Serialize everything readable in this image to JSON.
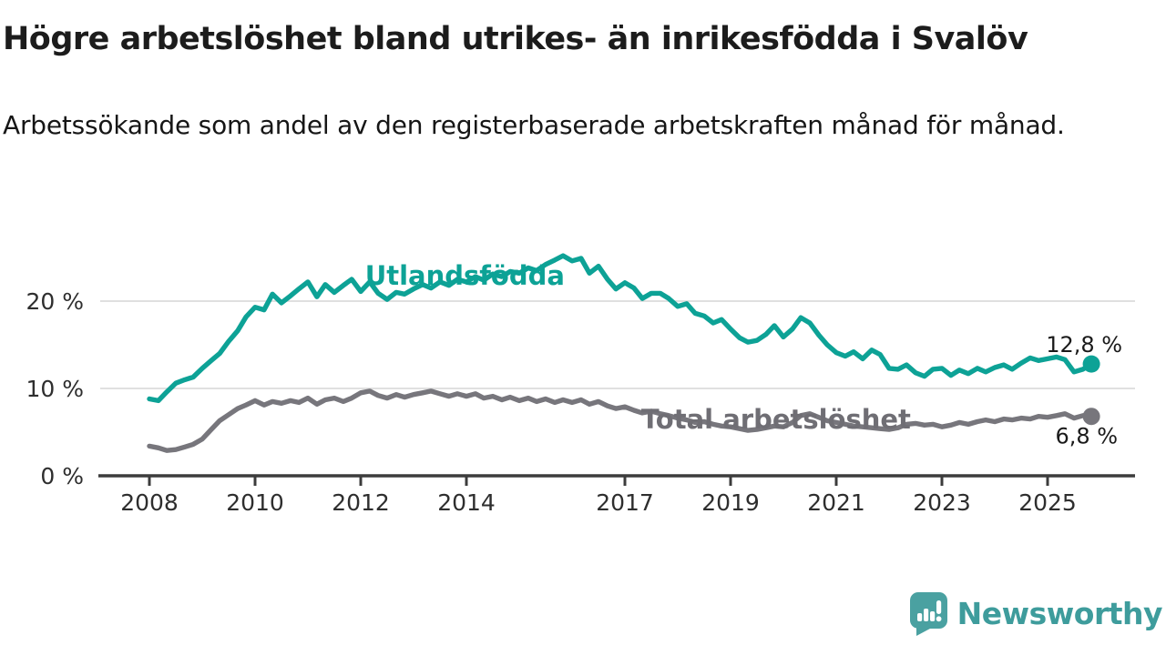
{
  "header": {
    "title": "Högre arbetslöshet bland utrikes- än inrikesfödda i Svalöv",
    "subtitle": "Arbetssökande som andel av den registerbaserade arbetskraften månad för månad."
  },
  "footer": {
    "brand": "Newsworthy"
  },
  "colors": {
    "foreign_born": "#0da296",
    "total": "#77767c",
    "total_label": "#6f6e74",
    "value_label": "#1a1a1a",
    "axis": "#3c3c3c",
    "grid": "#dcdcdc",
    "brand": "#3e9c9c"
  },
  "chart_data": {
    "type": "line",
    "title": "Högre arbetslöshet bland utrikes- än inrikesfödda i Svalöv",
    "subtitle": "Arbetssökande som andel av den registerbaserade arbetskraften månad för månad.",
    "xlabel": "",
    "ylabel": "",
    "x_unit": "year (decimal fraction = month)",
    "y_unit": "percent of registered labour force",
    "xlim": [
      2007.05,
      2026.6
    ],
    "ylim": [
      0,
      26
    ],
    "grid": "horizontal",
    "legend_position": "inline-labels",
    "yticks": [
      {
        "value": 0,
        "label": "0 %"
      },
      {
        "value": 10,
        "label": "10 %"
      },
      {
        "value": 20,
        "label": "20 %"
      }
    ],
    "xticks": [
      {
        "value": 2008,
        "label": "2008"
      },
      {
        "value": 2010,
        "label": "2010"
      },
      {
        "value": 2012,
        "label": "2012"
      },
      {
        "value": 2014,
        "label": "2014"
      },
      {
        "value": 2017,
        "label": "2017"
      },
      {
        "value": 2019,
        "label": "2019"
      },
      {
        "value": 2021,
        "label": "2021"
      },
      {
        "value": 2023,
        "label": "2023"
      },
      {
        "value": 2025,
        "label": "2025"
      }
    ],
    "annotations": [
      {
        "text": "Utlandsfödda",
        "x": 2013.97,
        "y": 21.9,
        "color_key": "foreign_born"
      },
      {
        "text": "Total arbetslöshet",
        "x": 2019.86,
        "y": 5.4,
        "color_key": "total_label"
      }
    ],
    "series": [
      {
        "name": "Utlandsfödda",
        "color_key": "foreign_born",
        "end_value": 12.8,
        "end_label": "12,8 %",
        "points": [
          [
            2008.0,
            8.8
          ],
          [
            2008.17,
            8.6
          ],
          [
            2008.33,
            9.6
          ],
          [
            2008.5,
            10.6
          ],
          [
            2008.67,
            11.0
          ],
          [
            2008.83,
            11.3
          ],
          [
            2009.0,
            12.3
          ],
          [
            2009.17,
            13.2
          ],
          [
            2009.33,
            14.0
          ],
          [
            2009.5,
            15.4
          ],
          [
            2009.67,
            16.6
          ],
          [
            2009.83,
            18.2
          ],
          [
            2010.0,
            19.3
          ],
          [
            2010.17,
            19.0
          ],
          [
            2010.33,
            20.8
          ],
          [
            2010.5,
            19.8
          ],
          [
            2010.67,
            20.6
          ],
          [
            2010.83,
            21.4
          ],
          [
            2011.0,
            22.2
          ],
          [
            2011.17,
            20.5
          ],
          [
            2011.33,
            21.9
          ],
          [
            2011.5,
            21.0
          ],
          [
            2011.67,
            21.8
          ],
          [
            2011.83,
            22.5
          ],
          [
            2012.0,
            21.1
          ],
          [
            2012.17,
            22.2
          ],
          [
            2012.33,
            20.9
          ],
          [
            2012.5,
            20.2
          ],
          [
            2012.67,
            21.0
          ],
          [
            2012.83,
            20.8
          ],
          [
            2013.0,
            21.4
          ],
          [
            2013.17,
            21.9
          ],
          [
            2013.33,
            21.5
          ],
          [
            2013.5,
            22.2
          ],
          [
            2013.67,
            21.8
          ],
          [
            2013.83,
            22.5
          ],
          [
            2014.0,
            22.2
          ],
          [
            2014.17,
            22.8
          ],
          [
            2014.33,
            22.4
          ],
          [
            2014.5,
            23.1
          ],
          [
            2014.67,
            22.8
          ],
          [
            2014.83,
            23.4
          ],
          [
            2015.0,
            23.2
          ],
          [
            2015.17,
            23.8
          ],
          [
            2015.33,
            23.5
          ],
          [
            2015.5,
            24.2
          ],
          [
            2015.67,
            24.7
          ],
          [
            2015.83,
            25.2
          ],
          [
            2016.0,
            24.6
          ],
          [
            2016.17,
            24.9
          ],
          [
            2016.33,
            23.2
          ],
          [
            2016.5,
            24.0
          ],
          [
            2016.67,
            22.5
          ],
          [
            2016.83,
            21.4
          ],
          [
            2017.0,
            22.1
          ],
          [
            2017.17,
            21.5
          ],
          [
            2017.33,
            20.3
          ],
          [
            2017.5,
            20.9
          ],
          [
            2017.67,
            20.9
          ],
          [
            2017.83,
            20.3
          ],
          [
            2018.0,
            19.4
          ],
          [
            2018.17,
            19.7
          ],
          [
            2018.33,
            18.6
          ],
          [
            2018.5,
            18.3
          ],
          [
            2018.67,
            17.5
          ],
          [
            2018.83,
            17.9
          ],
          [
            2019.0,
            16.8
          ],
          [
            2019.17,
            15.8
          ],
          [
            2019.33,
            15.3
          ],
          [
            2019.5,
            15.5
          ],
          [
            2019.67,
            16.2
          ],
          [
            2019.83,
            17.2
          ],
          [
            2020.0,
            15.9
          ],
          [
            2020.17,
            16.8
          ],
          [
            2020.33,
            18.1
          ],
          [
            2020.5,
            17.5
          ],
          [
            2020.67,
            16.1
          ],
          [
            2020.83,
            15.0
          ],
          [
            2021.0,
            14.1
          ],
          [
            2021.17,
            13.7
          ],
          [
            2021.33,
            14.2
          ],
          [
            2021.5,
            13.4
          ],
          [
            2021.67,
            14.4
          ],
          [
            2021.83,
            13.9
          ],
          [
            2022.0,
            12.3
          ],
          [
            2022.17,
            12.2
          ],
          [
            2022.33,
            12.7
          ],
          [
            2022.5,
            11.8
          ],
          [
            2022.67,
            11.4
          ],
          [
            2022.83,
            12.2
          ],
          [
            2023.0,
            12.3
          ],
          [
            2023.17,
            11.5
          ],
          [
            2023.33,
            12.1
          ],
          [
            2023.5,
            11.7
          ],
          [
            2023.67,
            12.3
          ],
          [
            2023.83,
            11.9
          ],
          [
            2024.0,
            12.4
          ],
          [
            2024.17,
            12.7
          ],
          [
            2024.33,
            12.2
          ],
          [
            2024.5,
            12.9
          ],
          [
            2024.67,
            13.5
          ],
          [
            2024.83,
            13.2
          ],
          [
            2025.0,
            13.4
          ],
          [
            2025.17,
            13.6
          ],
          [
            2025.33,
            13.3
          ],
          [
            2025.5,
            11.9
          ],
          [
            2025.67,
            12.2
          ],
          [
            2025.83,
            12.8
          ]
        ]
      },
      {
        "name": "Total arbetslöshet",
        "color_key": "total",
        "end_value": 6.8,
        "end_label": "6,8 %",
        "points": [
          [
            2008.0,
            3.4
          ],
          [
            2008.17,
            3.2
          ],
          [
            2008.33,
            2.9
          ],
          [
            2008.5,
            3.0
          ],
          [
            2008.67,
            3.3
          ],
          [
            2008.83,
            3.6
          ],
          [
            2009.0,
            4.2
          ],
          [
            2009.17,
            5.3
          ],
          [
            2009.33,
            6.3
          ],
          [
            2009.5,
            7.0
          ],
          [
            2009.67,
            7.7
          ],
          [
            2009.83,
            8.1
          ],
          [
            2010.0,
            8.6
          ],
          [
            2010.17,
            8.1
          ],
          [
            2010.33,
            8.5
          ],
          [
            2010.5,
            8.3
          ],
          [
            2010.67,
            8.6
          ],
          [
            2010.83,
            8.4
          ],
          [
            2011.0,
            8.9
          ],
          [
            2011.17,
            8.2
          ],
          [
            2011.33,
            8.7
          ],
          [
            2011.5,
            8.9
          ],
          [
            2011.67,
            8.5
          ],
          [
            2011.83,
            8.9
          ],
          [
            2012.0,
            9.5
          ],
          [
            2012.17,
            9.7
          ],
          [
            2012.33,
            9.2
          ],
          [
            2012.5,
            8.9
          ],
          [
            2012.67,
            9.3
          ],
          [
            2012.83,
            9.0
          ],
          [
            2013.0,
            9.3
          ],
          [
            2013.17,
            9.5
          ],
          [
            2013.33,
            9.7
          ],
          [
            2013.5,
            9.4
          ],
          [
            2013.67,
            9.1
          ],
          [
            2013.83,
            9.4
          ],
          [
            2014.0,
            9.1
          ],
          [
            2014.17,
            9.4
          ],
          [
            2014.33,
            8.9
          ],
          [
            2014.5,
            9.1
          ],
          [
            2014.67,
            8.7
          ],
          [
            2014.83,
            9.0
          ],
          [
            2015.0,
            8.6
          ],
          [
            2015.17,
            8.9
          ],
          [
            2015.33,
            8.5
          ],
          [
            2015.5,
            8.8
          ],
          [
            2015.67,
            8.4
          ],
          [
            2015.83,
            8.7
          ],
          [
            2016.0,
            8.4
          ],
          [
            2016.17,
            8.7
          ],
          [
            2016.33,
            8.2
          ],
          [
            2016.5,
            8.5
          ],
          [
            2016.67,
            8.0
          ],
          [
            2016.83,
            7.7
          ],
          [
            2017.0,
            7.9
          ],
          [
            2017.17,
            7.5
          ],
          [
            2017.33,
            7.2
          ],
          [
            2017.5,
            7.4
          ],
          [
            2017.67,
            7.1
          ],
          [
            2017.83,
            6.9
          ],
          [
            2018.0,
            6.6
          ],
          [
            2018.17,
            6.4
          ],
          [
            2018.33,
            6.1
          ],
          [
            2018.5,
            6.2
          ],
          [
            2018.67,
            5.9
          ],
          [
            2018.83,
            5.7
          ],
          [
            2019.0,
            5.6
          ],
          [
            2019.17,
            5.4
          ],
          [
            2019.33,
            5.2
          ],
          [
            2019.5,
            5.3
          ],
          [
            2019.67,
            5.5
          ],
          [
            2019.83,
            5.7
          ],
          [
            2020.0,
            5.6
          ],
          [
            2020.17,
            6.1
          ],
          [
            2020.33,
            6.9
          ],
          [
            2020.5,
            7.1
          ],
          [
            2020.67,
            6.7
          ],
          [
            2020.83,
            6.3
          ],
          [
            2021.0,
            6.1
          ],
          [
            2021.17,
            5.9
          ],
          [
            2021.33,
            5.7
          ],
          [
            2021.5,
            5.6
          ],
          [
            2021.67,
            5.5
          ],
          [
            2021.83,
            5.4
          ],
          [
            2022.0,
            5.3
          ],
          [
            2022.17,
            5.5
          ],
          [
            2022.33,
            5.9
          ],
          [
            2022.5,
            6.0
          ],
          [
            2022.67,
            5.8
          ],
          [
            2022.83,
            5.9
          ],
          [
            2023.0,
            5.6
          ],
          [
            2023.17,
            5.8
          ],
          [
            2023.33,
            6.1
          ],
          [
            2023.5,
            5.9
          ],
          [
            2023.67,
            6.2
          ],
          [
            2023.83,
            6.4
          ],
          [
            2024.0,
            6.2
          ],
          [
            2024.17,
            6.5
          ],
          [
            2024.33,
            6.4
          ],
          [
            2024.5,
            6.6
          ],
          [
            2024.67,
            6.5
          ],
          [
            2024.83,
            6.8
          ],
          [
            2025.0,
            6.7
          ],
          [
            2025.17,
            6.9
          ],
          [
            2025.33,
            7.1
          ],
          [
            2025.5,
            6.6
          ],
          [
            2025.67,
            6.9
          ],
          [
            2025.83,
            6.8
          ]
        ]
      }
    ]
  }
}
